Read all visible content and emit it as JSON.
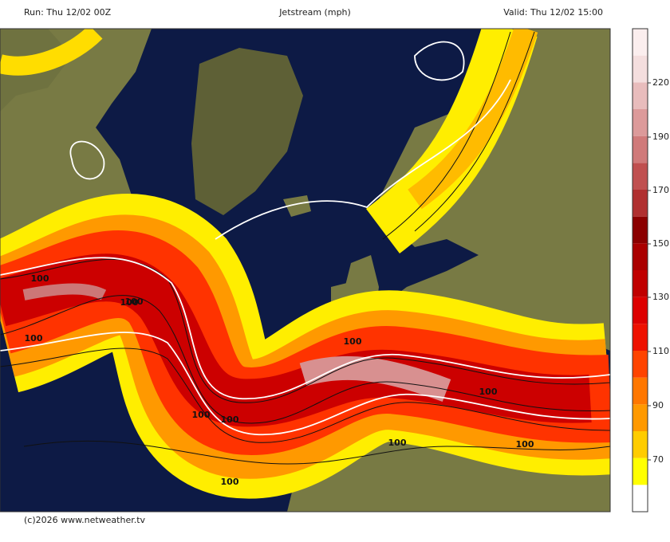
{
  "header": {
    "run": "Run: Thu 12/02 00Z",
    "title": "Jetstream (mph)",
    "valid": "Valid: Thu 12/02 15:00"
  },
  "footer": "(c)2026 www.netweather.tv",
  "colorbar": {
    "labels": [
      "70",
      "90",
      "110",
      "130",
      "150",
      "170",
      "190",
      "220"
    ]
  },
  "map": {
    "contour_labels": [
      "100",
      "100",
      "100",
      "100",
      "100",
      "100",
      "100",
      "100",
      "100",
      "100",
      "100"
    ]
  }
}
